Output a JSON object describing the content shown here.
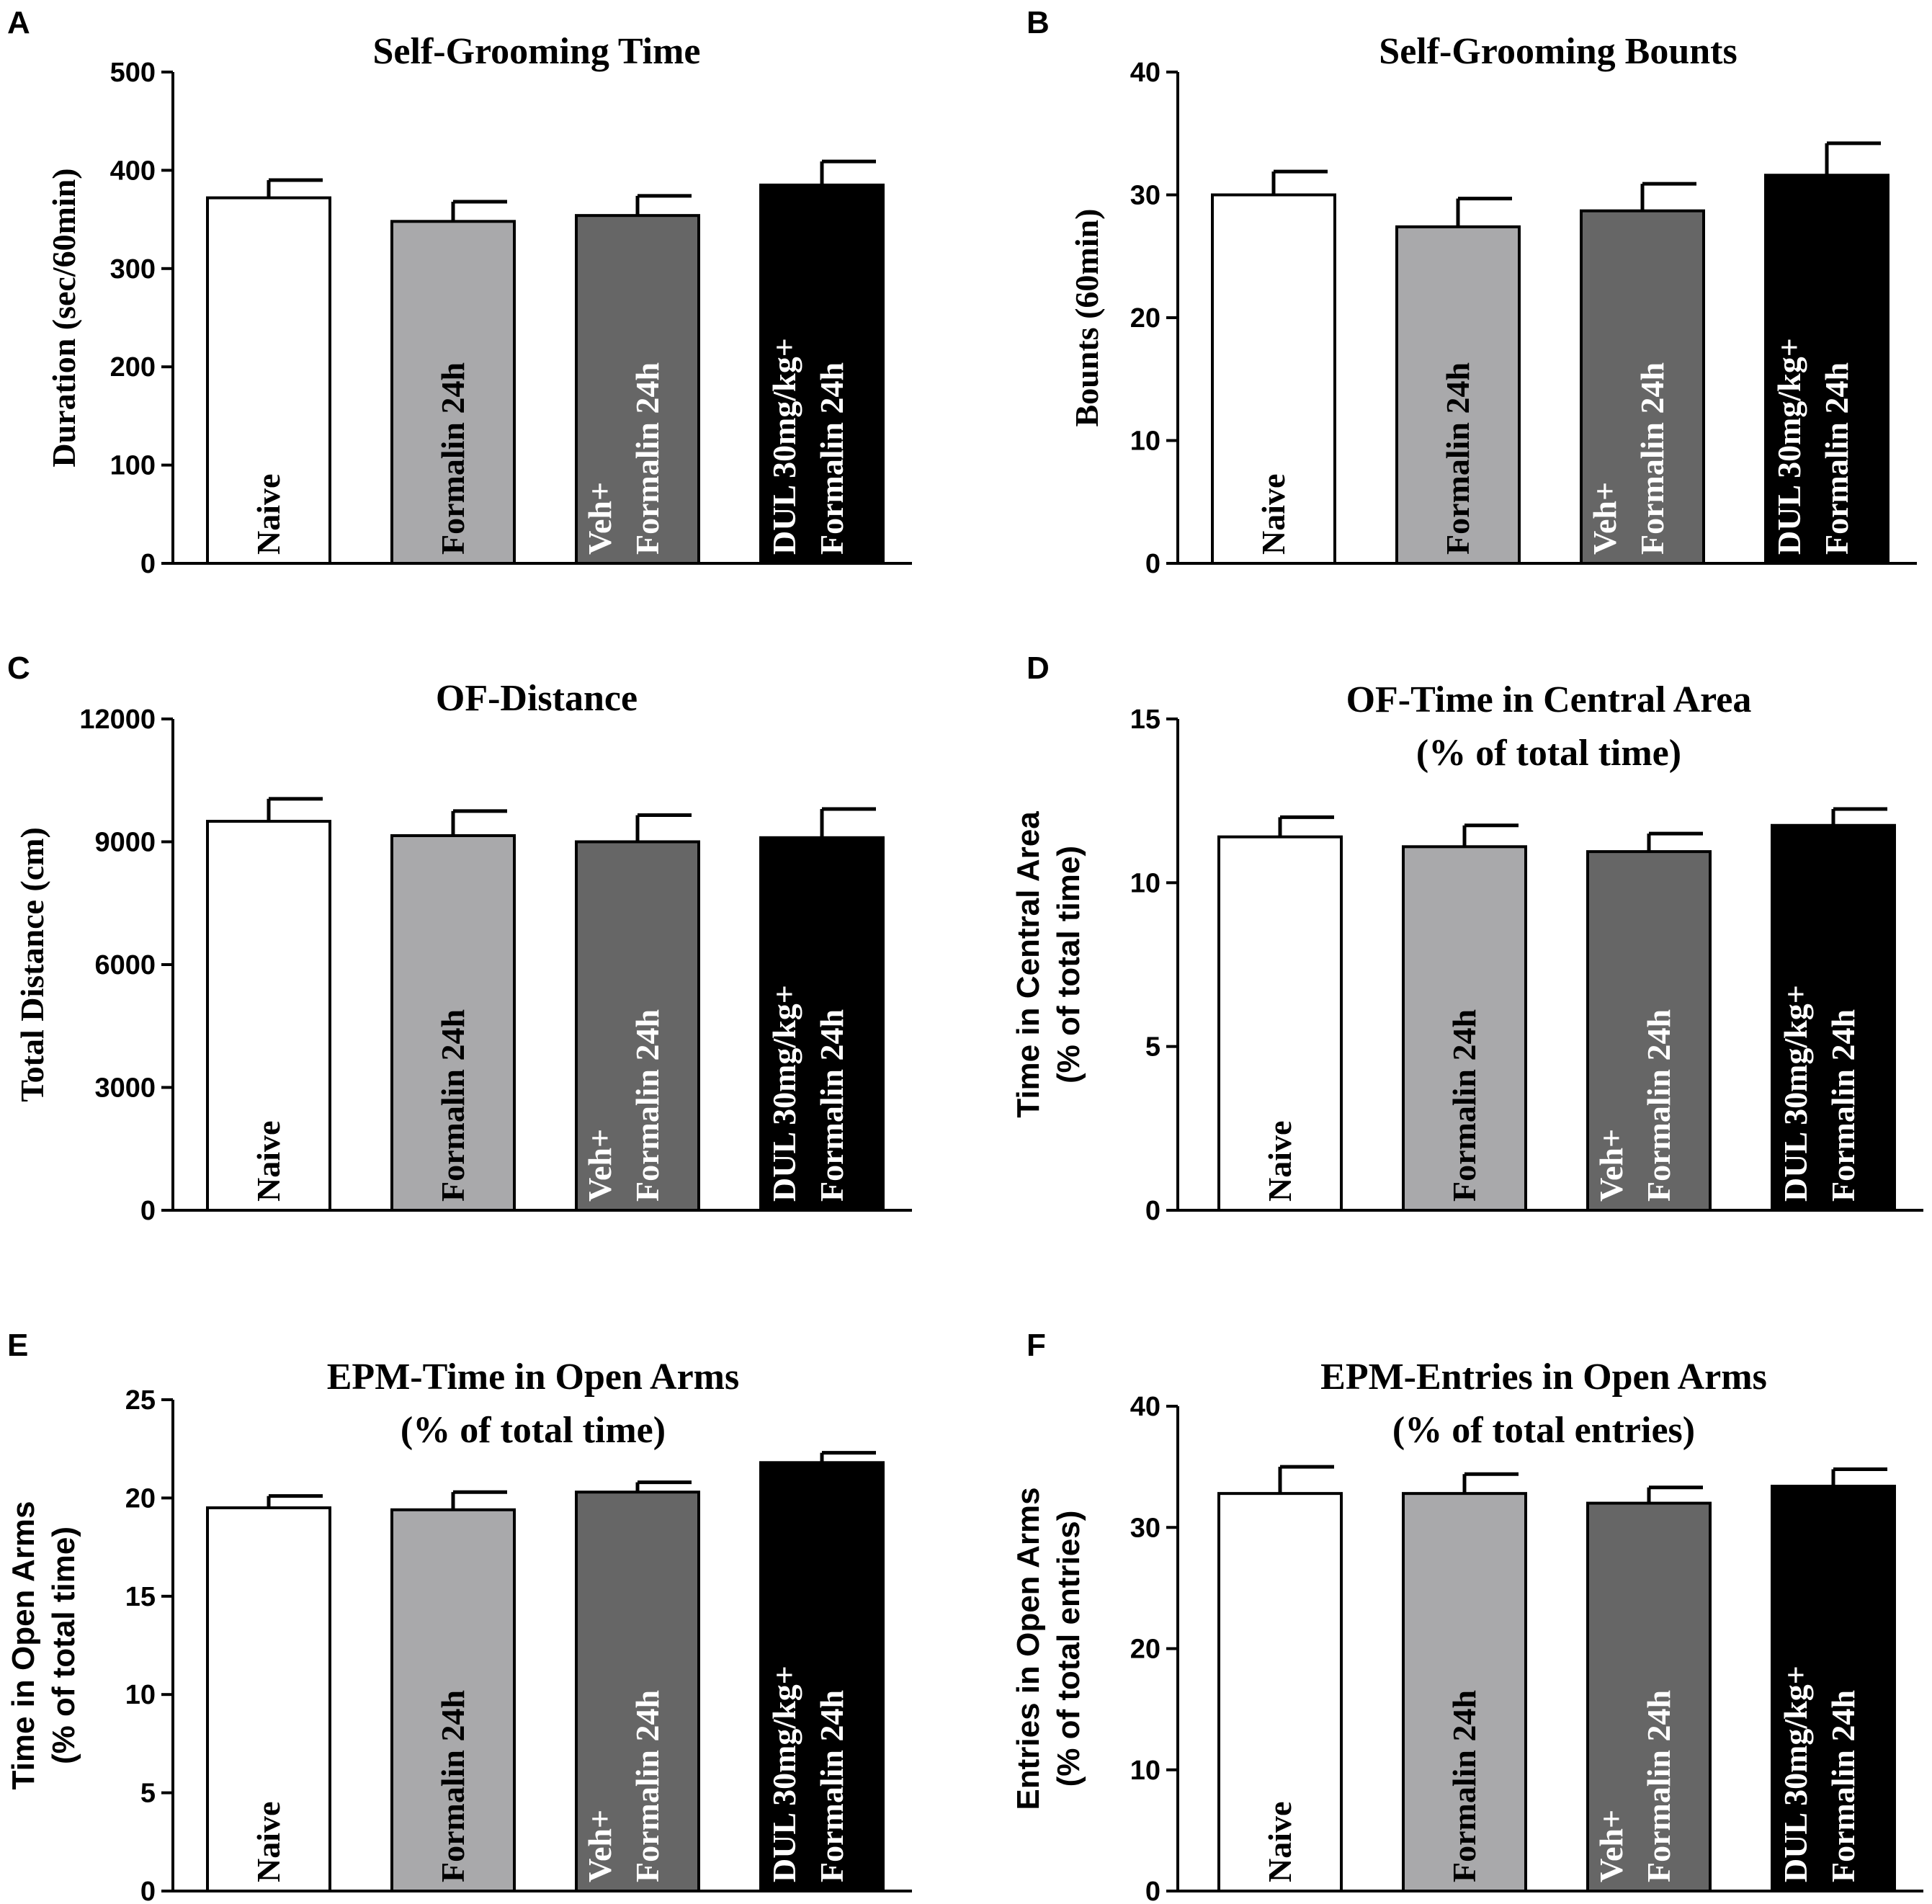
{
  "colors": {
    "naive": "#ffffff",
    "formalin": "#a9a9ab",
    "veh": "#666666",
    "dul": "#000000",
    "label_dark": "#000000",
    "label_light": "#ffffff"
  },
  "chart_data": [
    {
      "panel": "A",
      "type": "bar",
      "title": [
        "Self-Grooming Time"
      ],
      "ylabel": [
        "Duration (sec/60min)"
      ],
      "ylim": [
        0,
        500
      ],
      "yticks": [
        0,
        100,
        200,
        300,
        400,
        500
      ],
      "categories": [
        [
          "Naive"
        ],
        [
          "Formalin 24h"
        ],
        [
          "Veh+",
          "Formalin 24h"
        ],
        [
          "DUL 30mg/kg+",
          "Formalin 24h"
        ]
      ],
      "values": [
        372,
        348,
        354,
        385
      ],
      "errors": [
        18,
        20,
        20,
        24
      ]
    },
    {
      "panel": "B",
      "type": "bar",
      "title": [
        "Self-Grooming Bounts"
      ],
      "ylabel": [
        "Bounts (60min)"
      ],
      "ylim": [
        0,
        40
      ],
      "yticks": [
        0,
        10,
        20,
        30,
        40
      ],
      "categories": [
        [
          "Naive"
        ],
        [
          "Formalin 24h"
        ],
        [
          "Veh+",
          "Formalin 24h"
        ],
        [
          "DUL 30mg/kg+",
          "Formalin 24h"
        ]
      ],
      "values": [
        30.0,
        27.4,
        28.7,
        31.6
      ],
      "errors": [
        1.9,
        2.3,
        2.2,
        2.6
      ]
    },
    {
      "panel": "C",
      "type": "bar",
      "title": [
        "OF-Distance"
      ],
      "ylabel": [
        "Total Distance (cm)"
      ],
      "ylim": [
        0,
        12000
      ],
      "yticks": [
        0,
        3000,
        6000,
        9000,
        12000
      ],
      "categories": [
        [
          "Naive"
        ],
        [
          "Formalin 24h"
        ],
        [
          "Veh+",
          "Formalin 24h"
        ],
        [
          "DUL 30mg/kg+",
          "Formalin 24h"
        ]
      ],
      "values": [
        9500,
        9150,
        9000,
        9100
      ],
      "errors": [
        550,
        600,
        650,
        700
      ]
    },
    {
      "panel": "D",
      "type": "bar",
      "title": [
        "OF-Time in Central Area",
        "(% of total time)"
      ],
      "ylabel": [
        "Time in Central Area",
        "(% of total time)"
      ],
      "ylabel_sans": true,
      "ylim": [
        0,
        15
      ],
      "yticks": [
        0,
        5,
        10,
        15
      ],
      "categories": [
        [
          "Naive"
        ],
        [
          "Formalin 24h"
        ],
        [
          "Veh+",
          "Formalin 24h"
        ],
        [
          "DUL 30mg/kg+",
          "Formalin 24h"
        ]
      ],
      "values": [
        11.4,
        11.1,
        10.95,
        11.75
      ],
      "errors": [
        0.6,
        0.65,
        0.55,
        0.5
      ]
    },
    {
      "panel": "E",
      "type": "bar",
      "title": [
        "EPM-Time in Open Arms",
        "(% of total time)"
      ],
      "ylabel": [
        "Time in Open Arms",
        "(% of total time)"
      ],
      "ylabel_sans": true,
      "ylim": [
        0,
        25
      ],
      "yticks": [
        0,
        5,
        10,
        15,
        20,
        25
      ],
      "categories": [
        [
          "Naive"
        ],
        [
          "Formalin 24h"
        ],
        [
          "Veh+",
          "Formalin 24h"
        ],
        [
          "DUL 30mg/kg+",
          "Formalin 24h"
        ]
      ],
      "values": [
        19.5,
        19.4,
        20.3,
        21.8
      ],
      "errors": [
        0.6,
        0.9,
        0.5,
        0.5
      ]
    },
    {
      "panel": "F",
      "type": "bar",
      "title": [
        "EPM-Entries in Open Arms",
        "(% of total entries)"
      ],
      "ylabel": [
        "Entries in Open Arms",
        "(% of total entries)"
      ],
      "ylabel_sans": true,
      "ylim": [
        0,
        40
      ],
      "yticks": [
        0,
        10,
        20,
        30,
        40
      ],
      "categories": [
        [
          "Naive"
        ],
        [
          "Formalin 24h"
        ],
        [
          "Veh+",
          "Formalin 24h"
        ],
        [
          "DUL 30mg/kg+",
          "Formalin 24h"
        ]
      ],
      "values": [
        32.8,
        32.8,
        32.0,
        33.4
      ],
      "errors": [
        2.2,
        1.6,
        1.3,
        1.4
      ]
    }
  ]
}
